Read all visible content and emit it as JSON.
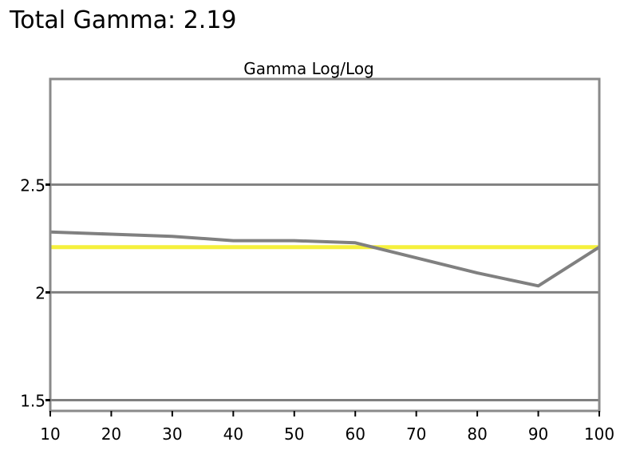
{
  "header": {
    "title": "Total Gamma: 2.19"
  },
  "chart_data": {
    "type": "line",
    "title": "Gamma Log/Log",
    "xlabel": "",
    "ylabel": "",
    "x": [
      10,
      20,
      30,
      40,
      50,
      60,
      70,
      80,
      90,
      100
    ],
    "xlim": [
      10,
      100
    ],
    "ylim": [
      1.45,
      2.99
    ],
    "x_ticks": [
      "10",
      "20",
      "30",
      "40",
      "50",
      "60",
      "70",
      "80",
      "90",
      "100"
    ],
    "y_ticks": [
      {
        "value": 1.5,
        "label": "1.5"
      },
      {
        "value": 2,
        "label": "2"
      },
      {
        "value": 2.5,
        "label": "2.5"
      }
    ],
    "grid": "horizontal",
    "series": [
      {
        "values": [
          2.28,
          2.27,
          2.26,
          2.24,
          2.24,
          2.23,
          2.16,
          2.09,
          2.03,
          2.21
        ],
        "color": "#808080"
      }
    ],
    "reference_line": {
      "value": 2.21,
      "color": "#f5f03c"
    },
    "colors": {
      "frame": "#8a8a8a",
      "gridline": "#808080"
    }
  }
}
